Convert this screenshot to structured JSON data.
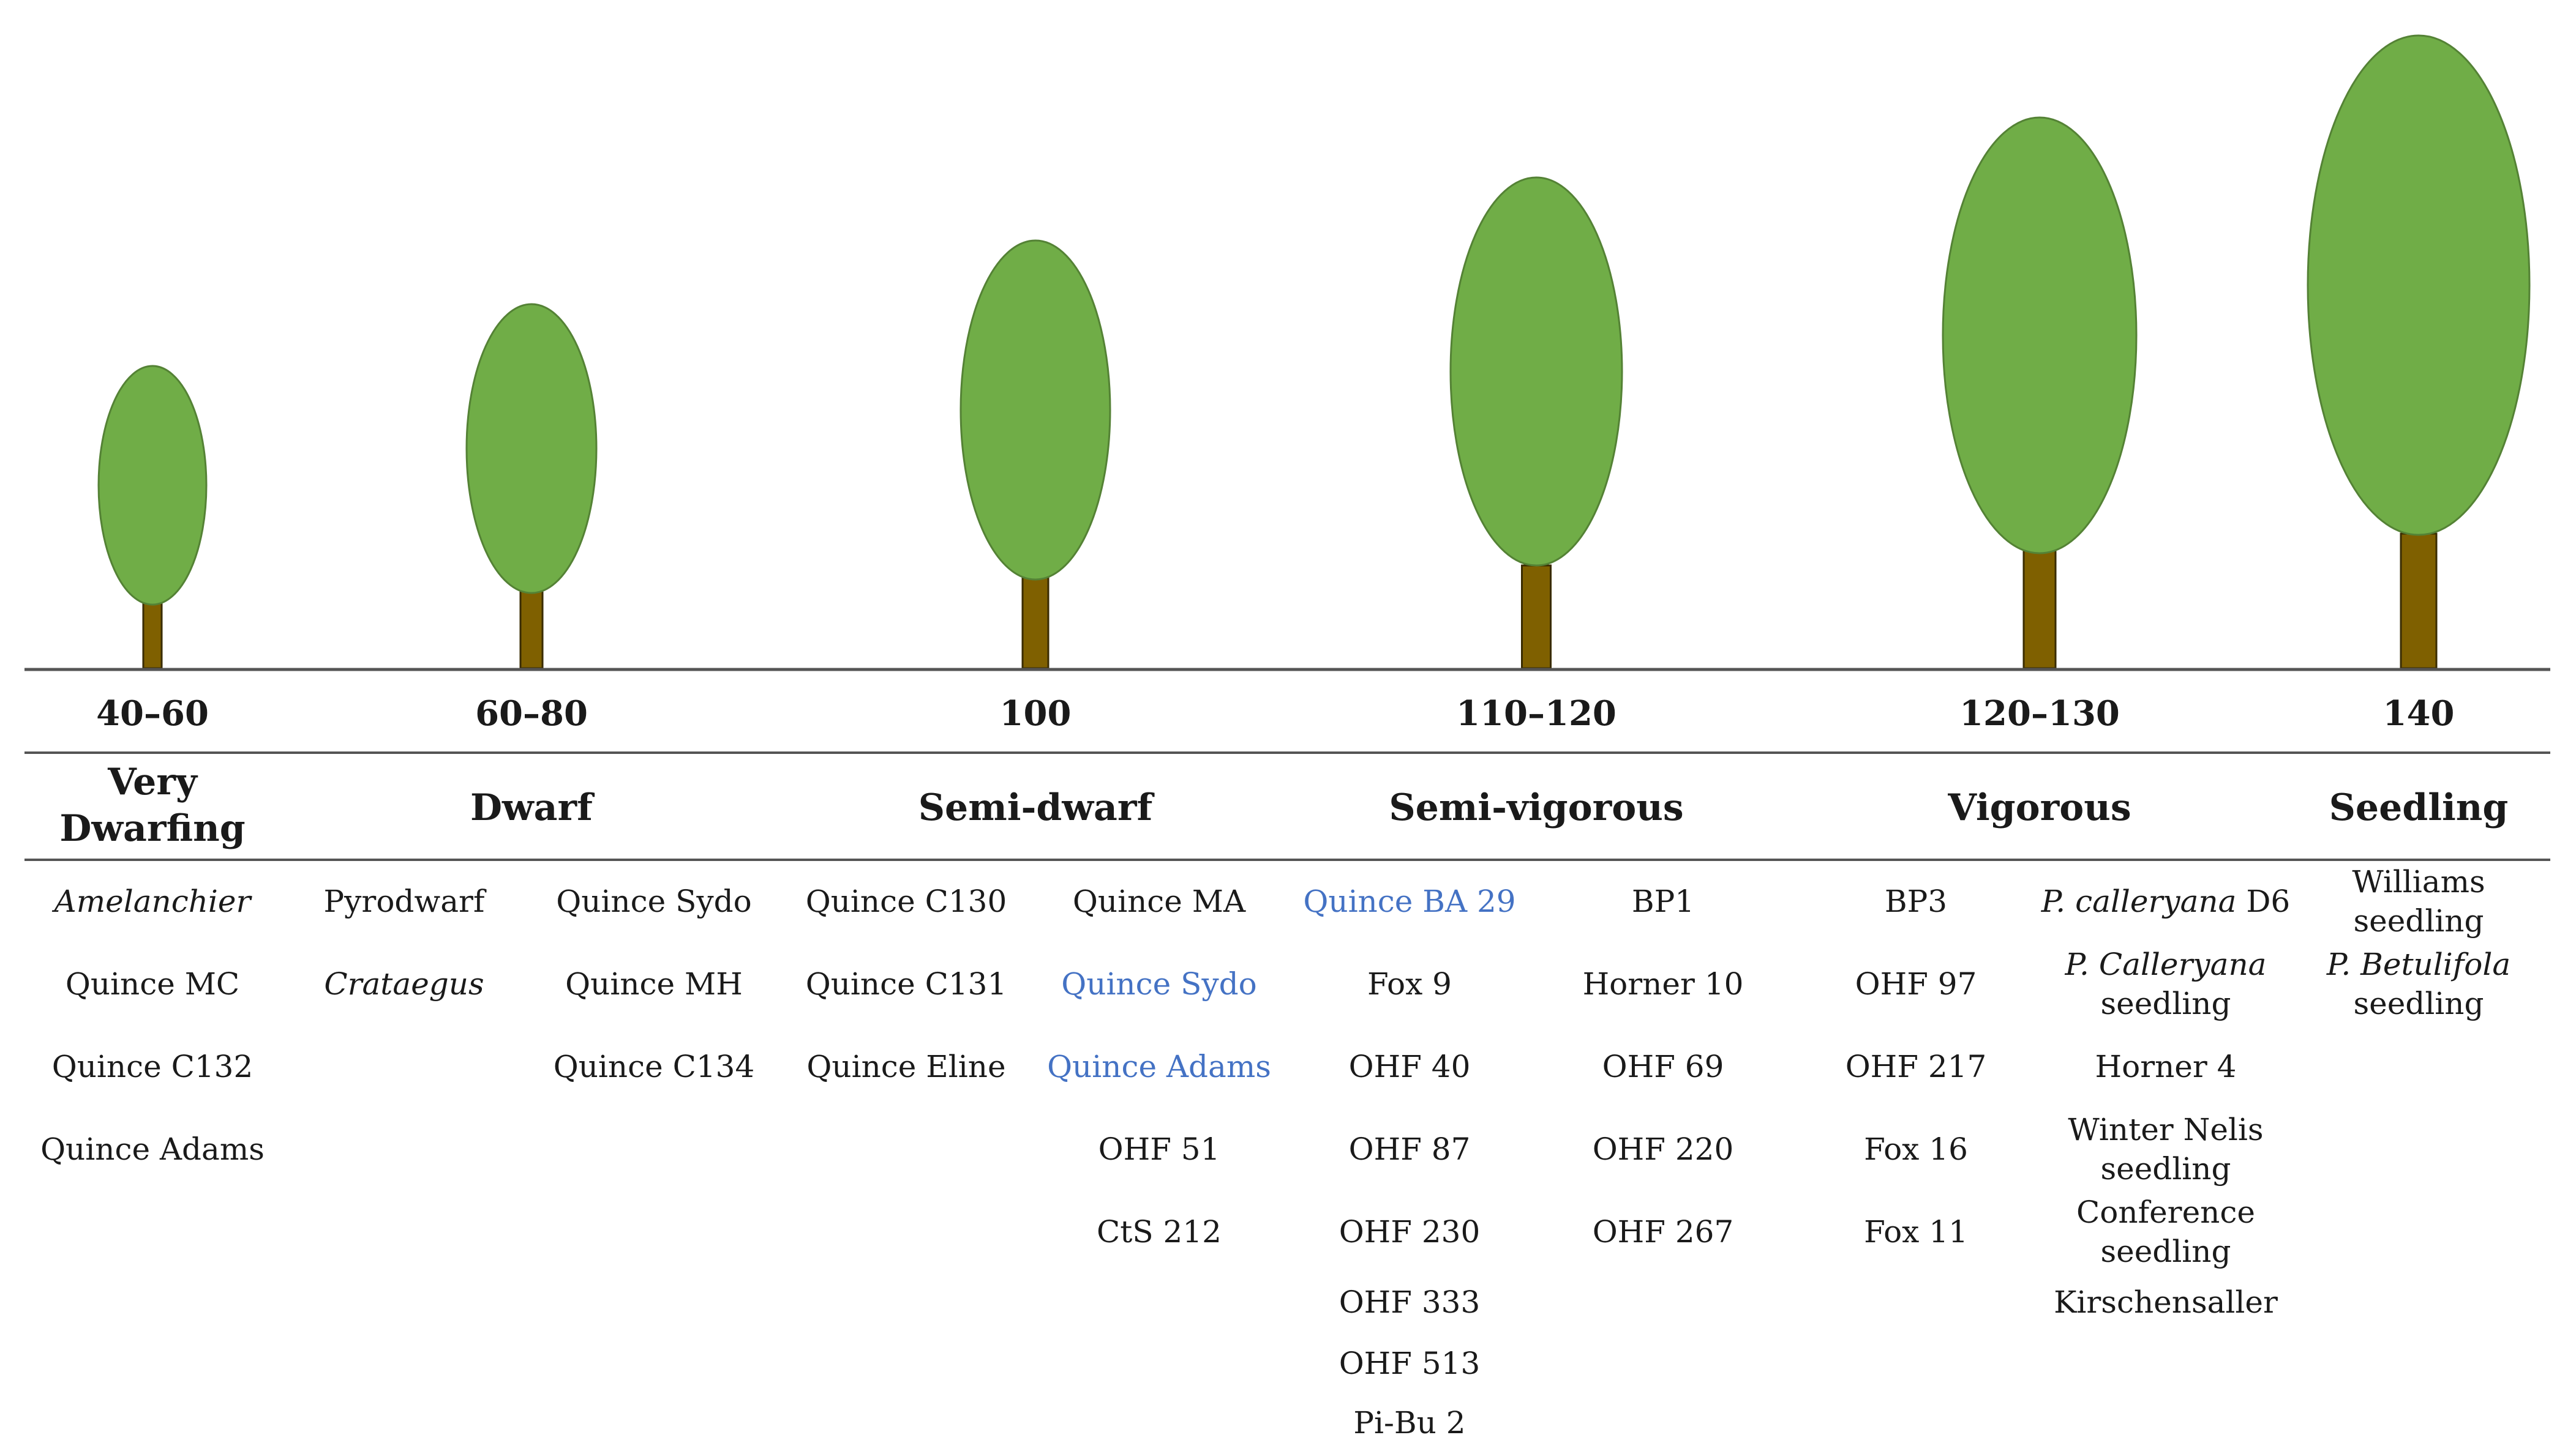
{
  "colors": {
    "canopy": "#70AD47",
    "canopy_edge": "#548235",
    "trunk": "#7F6000",
    "trunk_edge": "#3A2C00",
    "text": "#1A1A1A",
    "link": "#4472C4",
    "rule": "#555555"
  },
  "groups": [
    {
      "vigor": "40–60",
      "height_rel": 0.4,
      "category": [
        "Very",
        "Dwarfing"
      ]
    },
    {
      "vigor": "60–80",
      "height_rel": 0.57,
      "category": [
        "Dwarf"
      ]
    },
    {
      "vigor": "100",
      "height_rel": 0.71,
      "category": [
        "Semi-dwarf"
      ]
    },
    {
      "vigor": "110–120",
      "height_rel": 0.81,
      "category": [
        "Semi-vigorous"
      ]
    },
    {
      "vigor": "120–130",
      "height_rel": 0.9,
      "category": [
        "Vigorous"
      ]
    },
    {
      "vigor": "140",
      "height_rel": 1.0,
      "category": [
        "Seedling"
      ]
    }
  ],
  "columns": [
    [
      {
        "parts": [
          {
            "t": "Amelanchier",
            "i": true
          }
        ]
      },
      {
        "parts": [
          {
            "t": "Quince MC"
          }
        ]
      },
      {
        "parts": [
          {
            "t": "Quince C132"
          }
        ]
      },
      {
        "parts": [
          {
            "t": "Quince Adams"
          }
        ]
      }
    ],
    [
      {
        "parts": [
          {
            "t": "Pyrodwarf"
          }
        ]
      },
      {
        "parts": [
          {
            "t": "Crataegus",
            "i": true
          }
        ]
      }
    ],
    [
      {
        "parts": [
          {
            "t": "Quince Sydo"
          }
        ]
      },
      {
        "parts": [
          {
            "t": "Quince MH"
          }
        ]
      },
      {
        "parts": [
          {
            "t": "Quince C134"
          }
        ]
      }
    ],
    [
      {
        "parts": [
          {
            "t": "Quince C130"
          }
        ]
      },
      {
        "parts": [
          {
            "t": "Quince C131"
          }
        ]
      },
      {
        "parts": [
          {
            "t": "Quince Eline"
          }
        ]
      }
    ],
    [
      {
        "parts": [
          {
            "t": "Quince MA"
          }
        ]
      },
      {
        "parts": [
          {
            "t": "Quince Sydo"
          }
        ],
        "link": true
      },
      {
        "parts": [
          {
            "t": "Quince Adams"
          }
        ],
        "link": true
      },
      {
        "parts": [
          {
            "t": "OHF 51"
          }
        ]
      },
      {
        "parts": [
          {
            "t": "CtS 212"
          }
        ]
      }
    ],
    [
      {
        "parts": [
          {
            "t": "Quince BA 29"
          }
        ],
        "link": true
      },
      {
        "parts": [
          {
            "t": "Fox 9"
          }
        ]
      },
      {
        "parts": [
          {
            "t": "OHF 40"
          }
        ]
      },
      {
        "parts": [
          {
            "t": "OHF 87"
          }
        ]
      },
      {
        "parts": [
          {
            "t": "OHF 230"
          }
        ]
      },
      {
        "parts": [
          {
            "t": "OHF 333"
          }
        ]
      },
      {
        "parts": [
          {
            "t": "OHF 513"
          }
        ]
      },
      {
        "parts": [
          {
            "t": "Pi-Bu 2"
          }
        ]
      }
    ],
    [
      {
        "parts": [
          {
            "t": "BP1"
          }
        ]
      },
      {
        "parts": [
          {
            "t": "Horner 10"
          }
        ]
      },
      {
        "parts": [
          {
            "t": "OHF 69"
          }
        ]
      },
      {
        "parts": [
          {
            "t": "OHF 220"
          }
        ]
      },
      {
        "parts": [
          {
            "t": "OHF 267"
          }
        ]
      }
    ],
    [
      {
        "parts": [
          {
            "t": "BP3"
          }
        ]
      },
      {
        "parts": [
          {
            "t": "OHF 97"
          }
        ]
      },
      {
        "parts": [
          {
            "t": "OHF 217"
          }
        ]
      },
      {
        "parts": [
          {
            "t": "Fox 16"
          }
        ]
      },
      {
        "parts": [
          {
            "t": "Fox 11"
          }
        ]
      }
    ],
    [
      {
        "parts": [
          {
            "t": "P. calleryana",
            "i": true
          },
          {
            "t": " D6"
          }
        ]
      },
      {
        "parts": [
          {
            "t": "P. Calleryana",
            "i": true
          }
        ],
        "line2": "seedling"
      },
      {
        "parts": [
          {
            "t": "Horner 4"
          }
        ]
      },
      {
        "parts": [
          {
            "t": "Winter Nelis"
          }
        ],
        "line2": "seedling"
      },
      {
        "parts": [
          {
            "t": "Conference"
          }
        ],
        "line2": "seedling"
      },
      {
        "parts": [
          {
            "t": "Kirschensaller"
          }
        ]
      }
    ],
    [
      {
        "parts": [
          {
            "t": "Williams"
          }
        ],
        "line2": "seedling"
      },
      {
        "parts": [
          {
            "t": "P. Betulifola",
            "i": true
          }
        ],
        "line2": "seedling"
      }
    ]
  ]
}
